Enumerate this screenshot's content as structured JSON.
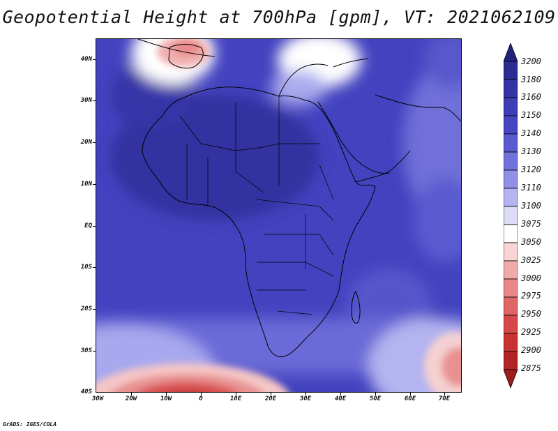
{
  "title": "Geopotential Height at 700hPa [gpm], VT: 2021062109",
  "credit": "GrADS: IGES/COLA",
  "map": {
    "projection": "latlon",
    "lon_range": [
      -30,
      75
    ],
    "lat_range": [
      -40,
      45
    ],
    "variable": "Geopotential Height",
    "level": "700hPa",
    "units": "gpm",
    "valid_time": "2021062109",
    "y_ticks": [
      "40N",
      "30N",
      "20N",
      "10N",
      "EQ",
      "10S",
      "20S",
      "30S",
      "40S"
    ],
    "x_ticks": [
      "30W",
      "20W",
      "10W",
      "0",
      "10E",
      "20E",
      "30E",
      "40E",
      "50E",
      "60E",
      "70E"
    ]
  },
  "colorbar": {
    "levels": [
      "3200",
      "3180",
      "3160",
      "3150",
      "3140",
      "3130",
      "3120",
      "3110",
      "3100",
      "3075",
      "3050",
      "3025",
      "3000",
      "2975",
      "2950",
      "2925",
      "2900",
      "2875"
    ],
    "colors": [
      "#23237e",
      "#2c2c92",
      "#3333a3",
      "#3d3db5",
      "#4646c4",
      "#5a5ad0",
      "#7272dc",
      "#9090e6",
      "#b4b4f0",
      "#dcdcf7",
      "#ffffff",
      "#f8d4d4",
      "#f0aaaa",
      "#e88888",
      "#e06666",
      "#d84848",
      "#c83232",
      "#b52424",
      "#9e1c1c"
    ]
  }
}
